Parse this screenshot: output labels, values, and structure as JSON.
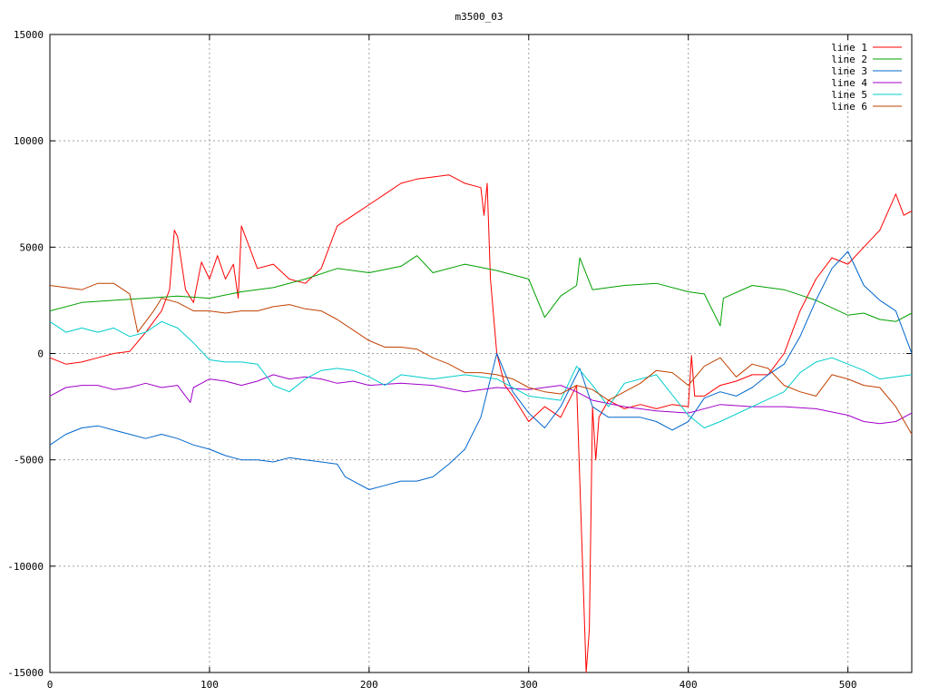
{
  "chart_data": {
    "type": "line",
    "title": "m3500_03",
    "xlabel": "",
    "ylabel": "",
    "xlim": [
      0,
      540
    ],
    "ylim": [
      -15000,
      15000
    ],
    "xticks": [
      0,
      100,
      200,
      300,
      400,
      500
    ],
    "yticks": [
      -15000,
      -10000,
      -5000,
      0,
      5000,
      10000,
      15000
    ],
    "grid": true,
    "legend_position": "top-right",
    "series": [
      {
        "name": "line 1",
        "color": "#ff0000",
        "x": [
          0,
          10,
          20,
          30,
          40,
          50,
          60,
          70,
          75,
          78,
          80,
          85,
          90,
          95,
          100,
          105,
          110,
          115,
          118,
          120,
          125,
          130,
          140,
          150,
          160,
          170,
          175,
          180,
          190,
          200,
          210,
          220,
          230,
          240,
          250,
          260,
          270,
          272,
          274,
          276,
          280,
          285,
          290,
          300,
          310,
          320,
          330,
          336,
          338,
          340,
          342,
          344,
          350,
          360,
          370,
          380,
          390,
          400,
          402,
          404,
          410,
          420,
          430,
          440,
          450,
          460,
          470,
          480,
          490,
          500,
          510,
          520,
          530,
          535,
          540
        ],
        "y": [
          -200,
          -500,
          -400,
          -200,
          0,
          100,
          1000,
          2000,
          3000,
          5800,
          5500,
          3000,
          2400,
          4300,
          3500,
          4600,
          3500,
          4200,
          2600,
          6000,
          5000,
          4000,
          4200,
          3500,
          3300,
          4000,
          5000,
          6000,
          6500,
          7000,
          7500,
          8000,
          8200,
          8300,
          8400,
          8000,
          7800,
          6500,
          8000,
          3500,
          0,
          -1500,
          -2000,
          -3200,
          -2500,
          -3000,
          -1500,
          -15000,
          -13000,
          -2500,
          -5000,
          -3000,
          -2200,
          -2600,
          -2400,
          -2600,
          -2400,
          -2500,
          -100,
          -2000,
          -2000,
          -1500,
          -1300,
          -1000,
          -1000,
          0,
          2000,
          3500,
          4500,
          4200,
          5000,
          5800,
          7500,
          6500,
          6700
        ]
      },
      {
        "name": "line 2",
        "color": "#00a000",
        "x": [
          0,
          20,
          40,
          60,
          80,
          100,
          120,
          140,
          160,
          180,
          200,
          220,
          230,
          240,
          260,
          280,
          300,
          310,
          320,
          330,
          332,
          340,
          360,
          380,
          400,
          410,
          420,
          422,
          440,
          460,
          480,
          500,
          510,
          520,
          530,
          540
        ],
        "y": [
          2000,
          2400,
          2500,
          2600,
          2700,
          2600,
          2900,
          3100,
          3500,
          4000,
          3800,
          4100,
          4600,
          3800,
          4200,
          3900,
          3500,
          1700,
          2700,
          3200,
          4500,
          3000,
          3200,
          3300,
          2900,
          2800,
          1300,
          2600,
          3200,
          3000,
          2500,
          1800,
          1900,
          1600,
          1500,
          1900
        ]
      },
      {
        "name": "line 3",
        "color": "#0066cc",
        "x": [
          0,
          10,
          20,
          30,
          40,
          50,
          60,
          70,
          80,
          90,
          100,
          110,
          120,
          130,
          140,
          150,
          160,
          170,
          180,
          185,
          190,
          200,
          210,
          220,
          230,
          240,
          250,
          260,
          270,
          280,
          290,
          300,
          310,
          320,
          330,
          332,
          340,
          350,
          360,
          370,
          380,
          390,
          400,
          410,
          420,
          430,
          440,
          450,
          460,
          470,
          480,
          490,
          500,
          510,
          520,
          530,
          540
        ],
        "y": [
          -4300,
          -3800,
          -3500,
          -3400,
          -3600,
          -3800,
          -4000,
          -3800,
          -4000,
          -4300,
          -4500,
          -4800,
          -5000,
          -5000,
          -5100,
          -4900,
          -5000,
          -5100,
          -5200,
          -5800,
          -6000,
          -6400,
          -6200,
          -6000,
          -6000,
          -5800,
          -5200,
          -4500,
          -3000,
          0,
          -1800,
          -2800,
          -3500,
          -2500,
          -1000,
          -700,
          -2500,
          -3000,
          -3000,
          -3000,
          -3200,
          -3600,
          -3200,
          -2100,
          -1800,
          -2000,
          -1600,
          -1000,
          -500,
          800,
          2500,
          4000,
          4800,
          3200,
          2500,
          2000,
          0
        ]
      },
      {
        "name": "line 4",
        "color": "#a000c8",
        "x": [
          0,
          10,
          20,
          30,
          40,
          50,
          60,
          70,
          80,
          88,
          90,
          95,
          100,
          110,
          120,
          130,
          140,
          150,
          160,
          170,
          180,
          190,
          200,
          220,
          240,
          260,
          280,
          300,
          320,
          330,
          340,
          360,
          380,
          400,
          420,
          440,
          460,
          480,
          500,
          510,
          520,
          530,
          540
        ],
        "y": [
          -2000,
          -1600,
          -1500,
          -1500,
          -1700,
          -1600,
          -1400,
          -1600,
          -1500,
          -2300,
          -1600,
          -1400,
          -1200,
          -1300,
          -1500,
          -1300,
          -1000,
          -1200,
          -1100,
          -1200,
          -1400,
          -1300,
          -1500,
          -1400,
          -1500,
          -1800,
          -1600,
          -1700,
          -1500,
          -1800,
          -2200,
          -2500,
          -2700,
          -2800,
          -2400,
          -2500,
          -2500,
          -2600,
          -2900,
          -3200,
          -3300,
          -3200,
          -2800
        ]
      },
      {
        "name": "line 5",
        "color": "#00cccc",
        "x": [
          0,
          10,
          20,
          30,
          40,
          50,
          60,
          70,
          80,
          90,
          100,
          110,
          120,
          130,
          140,
          150,
          160,
          170,
          180,
          190,
          200,
          210,
          220,
          240,
          260,
          280,
          300,
          320,
          330,
          340,
          350,
          360,
          380,
          400,
          410,
          420,
          440,
          460,
          470,
          480,
          490,
          500,
          510,
          520,
          530,
          540
        ],
        "y": [
          1500,
          1000,
          1200,
          1000,
          1200,
          800,
          1000,
          1500,
          1200,
          500,
          -300,
          -400,
          -400,
          -500,
          -1500,
          -1800,
          -1200,
          -800,
          -700,
          -800,
          -1100,
          -1500,
          -1000,
          -1200,
          -1000,
          -1200,
          -2000,
          -2200,
          -600,
          -1500,
          -2500,
          -1400,
          -1000,
          -2900,
          -3500,
          -3200,
          -2500,
          -1800,
          -900,
          -400,
          -200,
          -500,
          -800,
          -1200,
          -1100,
          -1000
        ]
      },
      {
        "name": "line 6",
        "color": "#c04000",
        "x": [
          0,
          10,
          20,
          30,
          40,
          50,
          55,
          60,
          65,
          70,
          80,
          90,
          100,
          110,
          120,
          130,
          140,
          150,
          160,
          170,
          180,
          190,
          200,
          210,
          220,
          230,
          240,
          250,
          260,
          270,
          280,
          290,
          300,
          310,
          320,
          330,
          340,
          350,
          360,
          370,
          380,
          390,
          400,
          410,
          420,
          430,
          440,
          450,
          460,
          470,
          480,
          490,
          500,
          510,
          520,
          530,
          540
        ],
        "y": [
          3200,
          3100,
          3000,
          3300,
          3300,
          2800,
          1000,
          1500,
          2000,
          2600,
          2400,
          2000,
          2000,
          1900,
          2000,
          2000,
          2200,
          2300,
          2100,
          2000,
          1600,
          1100,
          600,
          300,
          300,
          200,
          -200,
          -500,
          -900,
          -900,
          -1000,
          -1200,
          -1600,
          -1800,
          -1900,
          -1500,
          -1700,
          -2200,
          -1800,
          -1400,
          -800,
          -900,
          -1500,
          -600,
          -200,
          -1100,
          -500,
          -700,
          -1500,
          -1800,
          -2000,
          -1000,
          -1200,
          -1500,
          -1600,
          -2500,
          -3800
        ]
      }
    ]
  }
}
